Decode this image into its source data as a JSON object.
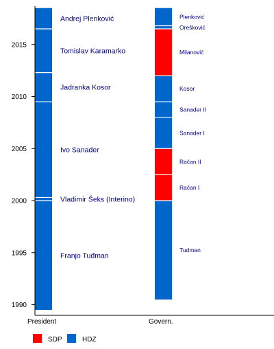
{
  "colors": {
    "background": "#ffffff",
    "axis": "#000000",
    "tick_label": "#000000",
    "bar_label": "#00008b",
    "divider": "#ffffff"
  },
  "chart_data": {
    "type": "timeline-bar",
    "title": "",
    "yaxis": {
      "ticks": [
        1990,
        1995,
        2000,
        2005,
        2010,
        2015
      ],
      "range": [
        1989.5,
        2017.3
      ]
    },
    "columns": [
      {
        "key": "president",
        "label": "President",
        "entries": [
          {
            "name": "Franjo Tuđman",
            "party": "HDZ",
            "start": 1989.5,
            "end": 2000.0
          },
          {
            "name": "Vladimir Šeks (Interino)",
            "party": "HDZ",
            "start": 2000.0,
            "end": 2000.3
          },
          {
            "name": "Ivo Sanader",
            "party": "HDZ",
            "start": 2000.3,
            "end": 2009.5
          },
          {
            "name": "Jadranka Kosor",
            "party": "HDZ",
            "start": 2009.5,
            "end": 2012.3
          },
          {
            "name": "Tomislav Karamarko",
            "party": "HDZ",
            "start": 2012.3,
            "end": 2016.5
          },
          {
            "name": "Andrej Plenković",
            "party": "HDZ",
            "start": 2016.5,
            "end": 2018.5
          }
        ]
      },
      {
        "key": "government",
        "label": "Govern.",
        "entries": [
          {
            "name": "Tudman",
            "party": "HDZ",
            "start": 1990.5,
            "end": 2000.0
          },
          {
            "name": "Račan I",
            "party": "SDP",
            "start": 2000.0,
            "end": 2002.5
          },
          {
            "name": "Račan II",
            "party": "SDP",
            "start": 2002.5,
            "end": 2005.0
          },
          {
            "name": "Sanader I",
            "party": "HDZ",
            "start": 2005.0,
            "end": 2008.0
          },
          {
            "name": "Sanader II",
            "party": "HDZ",
            "start": 2008.0,
            "end": 2009.5
          },
          {
            "name": "Kosor",
            "party": "HDZ",
            "start": 2009.5,
            "end": 2012.0
          },
          {
            "name": "Milanović",
            "party": "SDP",
            "start": 2012.0,
            "end": 2016.5
          },
          {
            "name": "Orešković",
            "party": "HDZ",
            "start": 2016.5,
            "end": 2016.8
          },
          {
            "name": "Plenković",
            "party": "HDZ",
            "start": 2016.8,
            "end": 2018.5
          }
        ]
      }
    ],
    "legend": {
      "placement": "bottom-left",
      "items": [
        {
          "party": "SDP",
          "label": "SDP",
          "color": "#ff0000"
        },
        {
          "party": "HDZ",
          "label": "HDZ",
          "color": "#0066cc"
        }
      ]
    }
  }
}
